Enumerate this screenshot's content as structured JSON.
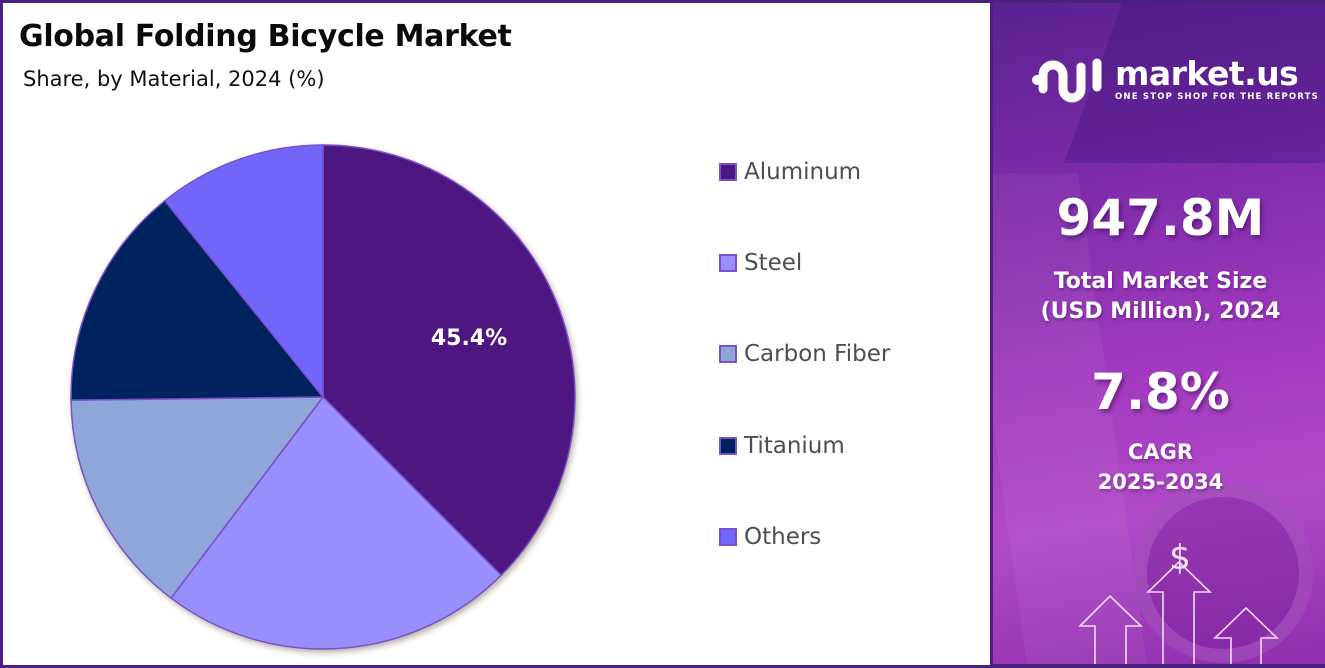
{
  "header": {
    "title": "Global Folding Bicycle Market",
    "subtitle": "Share, by Material, 2024 (%)"
  },
  "chart_data": {
    "type": "pie",
    "title": "Global Folding Bicycle Market",
    "subtitle": "Share, by Material, 2024 (%)",
    "categories": [
      "Aluminum",
      "Steel",
      "Carbon Fiber",
      "Titanium",
      "Others"
    ],
    "values": [
      45.4,
      22.7,
      14.5,
      10.1,
      7.3
    ],
    "labeled_values": {
      "Aluminum": "45.4%"
    },
    "colors": [
      "#4e1680",
      "#988ffc",
      "#8fa6d8",
      "#01205e",
      "#7266fa"
    ],
    "start_angle_deg": 0,
    "direction": "clockwise",
    "legend_position": "right",
    "slice_border_color": "#7a4fc8"
  },
  "pie": {
    "data_label": "45.4%"
  },
  "legend": {
    "items": [
      {
        "label": "Aluminum",
        "color": "#4e1680"
      },
      {
        "label": "Steel",
        "color": "#988ffc"
      },
      {
        "label": "Carbon Fiber",
        "color": "#8fa6d8"
      },
      {
        "label": "Titanium",
        "color": "#01205e"
      },
      {
        "label": "Others",
        "color": "#7266fa"
      }
    ]
  },
  "sidebar": {
    "brand": {
      "name": "market.us",
      "tagline": "ONE STOP SHOP FOR THE REPORTS",
      "icon": "market-us-logo-icon"
    },
    "market_size": {
      "value": "947.8M",
      "label_line1": "Total Market Size",
      "label_line2": "(USD Million), 2024"
    },
    "cagr": {
      "value": "7.8%",
      "label_line1": "CAGR",
      "label_line2": "2025-2034"
    },
    "decor": {
      "icon": "growth-arrows-dollar-icon",
      "symbol": "$"
    }
  },
  "colors": {
    "border": "#4a2080",
    "panel_top": "#5a2290",
    "panel_mid": "#a23ac0",
    "text_dark": "#0a0a0a",
    "legend_text": "#4d4d55"
  }
}
